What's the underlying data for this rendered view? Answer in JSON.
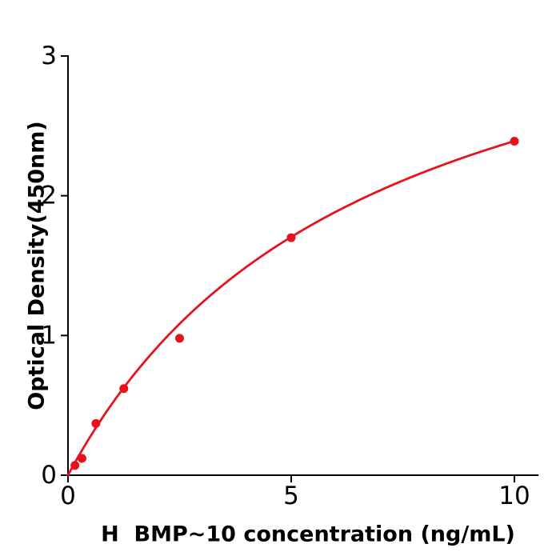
{
  "chart_data": {
    "type": "scatter",
    "title": "",
    "xlabel": "H  BMP~10 concentration (ng/mL)",
    "ylabel": "Optical Density(450nm)",
    "x": [
      0.156,
      0.3125,
      0.625,
      1.25,
      2.5,
      5,
      10
    ],
    "y": [
      0.07,
      0.12,
      0.37,
      0.62,
      0.98,
      1.7,
      2.39
    ],
    "fit_curve": {
      "model": "michaelis-menten",
      "vmax": 4.0,
      "km": 6.73,
      "x_start": 0,
      "x_end": 10
    },
    "xlim": [
      0,
      10.54
    ],
    "ylim": [
      0,
      3
    ],
    "xticks": [
      0,
      5,
      10
    ],
    "yticks": [
      0,
      1,
      2,
      3
    ],
    "grid": false,
    "legend": null,
    "marker_color": "#e8121c",
    "line_color": "#e8121c",
    "axis_color": "#000000",
    "tick_label_color": "#000000"
  }
}
